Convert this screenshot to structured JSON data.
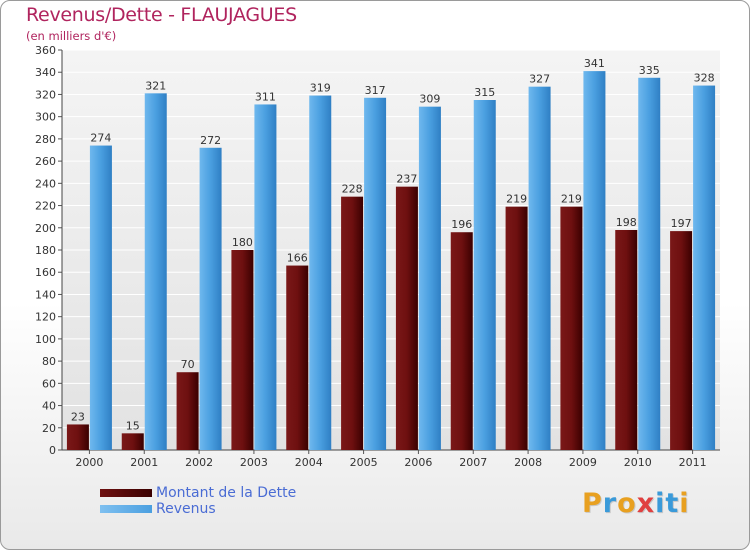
{
  "header": {
    "title": "Revenus/Dette - FLAUJAGUES",
    "subtitle": "(en milliers d'€)"
  },
  "colors": {
    "debt": "#6e1010",
    "revenue": "#4a9fe0",
    "title": "#b0245e",
    "legend_text": "#4a6cd4"
  },
  "legend": {
    "debt_label": "Montant de la Dette",
    "revenue_label": "Revenus"
  },
  "logo": {
    "text": "Proxiti"
  },
  "chart_data": {
    "type": "bar",
    "title": "Revenus/Dette - FLAUJAGUES",
    "subtitle": "(en milliers d'€)",
    "xlabel": "",
    "ylabel": "",
    "categories": [
      "2000",
      "2001",
      "2002",
      "2003",
      "2004",
      "2005",
      "2006",
      "2007",
      "2008",
      "2009",
      "2010",
      "2011"
    ],
    "series": [
      {
        "name": "Montant de la Dette",
        "values": [
          23,
          15,
          70,
          180,
          166,
          228,
          237,
          196,
          219,
          219,
          198,
          197
        ]
      },
      {
        "name": "Revenus",
        "values": [
          274,
          321,
          272,
          311,
          319,
          317,
          309,
          315,
          327,
          341,
          335,
          328
        ]
      }
    ],
    "ylim": [
      0,
      360
    ],
    "yticks": [
      0,
      20,
      40,
      60,
      80,
      100,
      120,
      140,
      160,
      180,
      200,
      220,
      240,
      260,
      280,
      300,
      320,
      340,
      360
    ],
    "grid": true,
    "legend_position": "bottom-left"
  }
}
